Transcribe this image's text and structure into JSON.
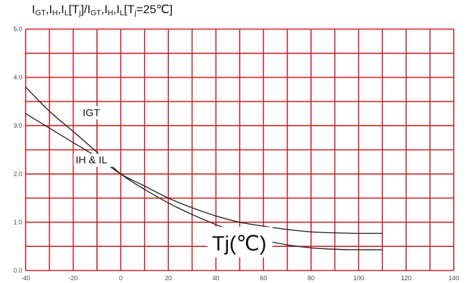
{
  "chart_data": {
    "type": "line",
    "title_parts": [
      {
        "t": "I"
      },
      {
        "t": "GT",
        "sub": true
      },
      {
        "t": ",I"
      },
      {
        "t": "H",
        "sub": true
      },
      {
        "t": ",I"
      },
      {
        "t": "L",
        "sub": true
      },
      {
        "t": "[T"
      },
      {
        "t": "j",
        "sub": true
      },
      {
        "t": "]/I"
      },
      {
        "t": "GT",
        "sub": true
      },
      {
        "t": ",I"
      },
      {
        "t": "H",
        "sub": true
      },
      {
        "t": ",I"
      },
      {
        "t": "L",
        "sub": true
      },
      {
        "t": "[T"
      },
      {
        "t": "j",
        "sub": true
      },
      {
        "t": "=25℃]"
      }
    ],
    "xlabel": "Tj(℃)",
    "xlim": [
      -40,
      140
    ],
    "ylim": [
      0,
      5
    ],
    "x_ticks": [
      -40,
      -30,
      -20,
      -10,
      0,
      10,
      20,
      30,
      40,
      50,
      60,
      70,
      80,
      90,
      100,
      110,
      120,
      130,
      140
    ],
    "x_tick_labels": [
      "-40",
      "-20",
      "0",
      "20",
      "40",
      "60",
      "80",
      "100",
      "120",
      "140"
    ],
    "x_tick_label_values": [
      -40,
      -20,
      0,
      20,
      40,
      60,
      80,
      100,
      120,
      140
    ],
    "y_ticks": [
      0,
      0.5,
      1.0,
      1.5,
      2.0,
      2.5,
      3.0,
      3.5,
      4.0,
      4.5,
      5.0
    ],
    "y_tick_labels": [
      "0.0",
      "1.0",
      "2.0",
      "3.0",
      "4.0",
      "5.0"
    ],
    "y_tick_label_values": [
      0,
      1,
      2,
      3,
      4,
      5
    ],
    "grid": true,
    "grid_color": "#cc2222",
    "line_color": "#222222",
    "series": [
      {
        "name": "IGT",
        "x": [
          -40,
          -30,
          -20,
          -10,
          0,
          10,
          20,
          30,
          40,
          50,
          60,
          70,
          80,
          90,
          100,
          110
        ],
        "y": [
          3.8,
          3.3,
          2.88,
          2.45,
          2.0,
          1.68,
          1.4,
          1.16,
          0.95,
          0.77,
          0.63,
          0.53,
          0.47,
          0.44,
          0.43,
          0.43
        ]
      },
      {
        "name": "IH & IL",
        "x": [
          -40,
          -30,
          -20,
          -10,
          0,
          10,
          20,
          30,
          40,
          50,
          60,
          70,
          80,
          90,
          100,
          110
        ],
        "y": [
          3.25,
          2.95,
          2.65,
          2.35,
          2.0,
          1.75,
          1.5,
          1.3,
          1.13,
          1.0,
          0.92,
          0.85,
          0.8,
          0.78,
          0.77,
          0.77
        ]
      }
    ],
    "series_labels": [
      {
        "series": 0,
        "text": "IGT",
        "at": [
          -16,
          3.2
        ]
      },
      {
        "series": 1,
        "text": "IH & IL",
        "at": [
          -19,
          2.22
        ]
      }
    ]
  }
}
